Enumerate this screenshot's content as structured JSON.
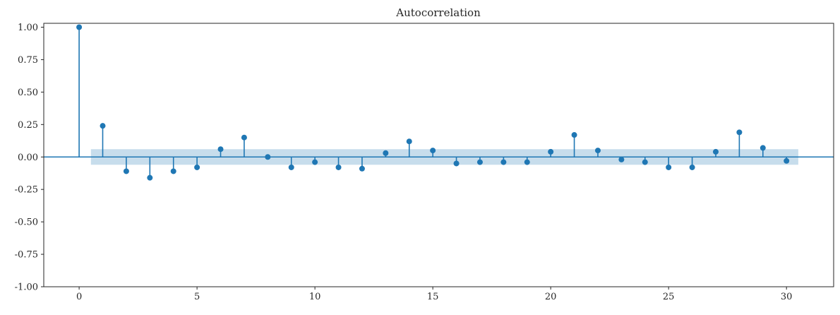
{
  "chart_data": {
    "type": "stem",
    "title": "Autocorrelation",
    "x": [
      0,
      1,
      2,
      3,
      4,
      5,
      6,
      7,
      8,
      9,
      10,
      11,
      12,
      13,
      14,
      15,
      16,
      17,
      18,
      19,
      20,
      21,
      22,
      23,
      24,
      25,
      26,
      27,
      28,
      29,
      30
    ],
    "values": [
      1.0,
      0.24,
      -0.11,
      -0.16,
      -0.11,
      -0.08,
      0.06,
      0.15,
      0.0,
      -0.08,
      -0.04,
      -0.08,
      -0.09,
      0.03,
      0.12,
      0.05,
      -0.05,
      -0.04,
      -0.04,
      -0.04,
      0.04,
      0.17,
      0.05,
      -0.02,
      -0.04,
      -0.08,
      -0.08,
      0.04,
      0.19,
      0.07,
      -0.03
    ],
    "confidence_band": {
      "x_start": 0.5,
      "x_end": 30.5,
      "upper": 0.06,
      "lower": -0.06
    },
    "xlim": [
      -1.5,
      32.0
    ],
    "ylim": [
      -1.0,
      1.03
    ],
    "x_ticks": {
      "values": [
        0,
        5,
        10,
        15,
        20,
        25,
        30
      ],
      "labels": [
        "0",
        "5",
        "10",
        "15",
        "20",
        "25",
        "30"
      ]
    },
    "y_ticks": {
      "values": [
        1.0,
        0.75,
        0.5,
        0.25,
        0.0,
        -0.25,
        -0.5,
        -0.75,
        -1.0
      ],
      "labels": [
        "1.00",
        "0.75",
        "0.50",
        "0.25",
        "0.00",
        "-0.25",
        "-0.50",
        "-0.75",
        "-1.00"
      ]
    },
    "colors": {
      "line": "#1f77b4",
      "marker": "#1f77b4",
      "band": "#1f77b4",
      "spine": "#262626",
      "text": "#262626"
    },
    "band_opacity": 0.25,
    "marker_radius": 4,
    "stem_width": 1.6,
    "grid": "off",
    "legend": "off"
  }
}
